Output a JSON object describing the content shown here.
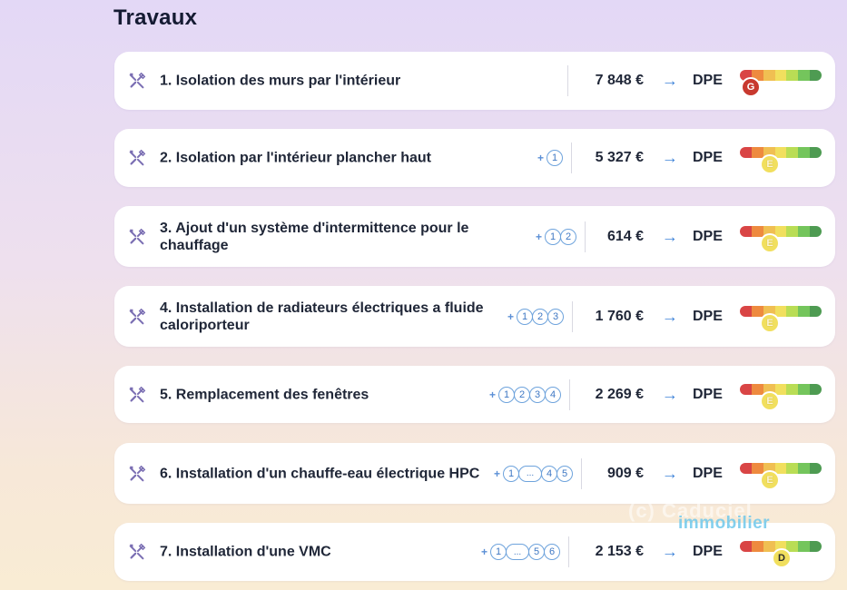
{
  "page": {
    "title": "Travaux"
  },
  "colors": {
    "dpe_scale": [
      "#d94545",
      "#ee8a3f",
      "#f0bf52",
      "#f1df5e",
      "#b9dd55",
      "#74c55c",
      "#4e9b52"
    ],
    "badge_G": "#c8392f",
    "badge_E": "#f1df5e",
    "badge_D": "#f1df5e",
    "arrow": "#3d82d8",
    "dependency": "#6ea3dc"
  },
  "works": [
    {
      "label": "1. Isolation des murs par l'intérieur",
      "deps": [],
      "price": "7 848 €",
      "arrow": "→",
      "dpe_label": "DPE",
      "dpe_class": "G"
    },
    {
      "label": "2. Isolation par l'intérieur plancher haut",
      "deps": [
        "1"
      ],
      "price": "5 327 €",
      "arrow": "→",
      "dpe_label": "DPE",
      "dpe_class": "E"
    },
    {
      "label": "3. Ajout d'un système d'intermittence pour le chauffage",
      "deps": [
        "1",
        "2"
      ],
      "price": "614 €",
      "arrow": "→",
      "dpe_label": "DPE",
      "dpe_class": "E"
    },
    {
      "label": "4. Installation de radiateurs électriques a fluide caloriporteur",
      "deps": [
        "1",
        "2",
        "3"
      ],
      "price": "1 760 €",
      "arrow": "→",
      "dpe_label": "DPE",
      "dpe_class": "E"
    },
    {
      "label": "5. Remplacement des fenêtres",
      "deps": [
        "1",
        "2",
        "3",
        "4"
      ],
      "price": "2 269 €",
      "arrow": "→",
      "dpe_label": "DPE",
      "dpe_class": "E"
    },
    {
      "label": "6. Installation d'un chauffe-eau électrique HPC",
      "deps": [
        "1",
        "...",
        "4",
        "5"
      ],
      "price": "909 €",
      "arrow": "→",
      "dpe_label": "DPE",
      "dpe_class": "E"
    },
    {
      "label": "7. Installation d'une VMC",
      "deps": [
        "1",
        "...",
        "5",
        "6"
      ],
      "price": "2 153 €",
      "arrow": "→",
      "dpe_label": "DPE",
      "dpe_class": "D"
    }
  ],
  "deps_plus": "+",
  "watermark": {
    "line1": "(c) Caduciel",
    "line2": "immobilier"
  }
}
